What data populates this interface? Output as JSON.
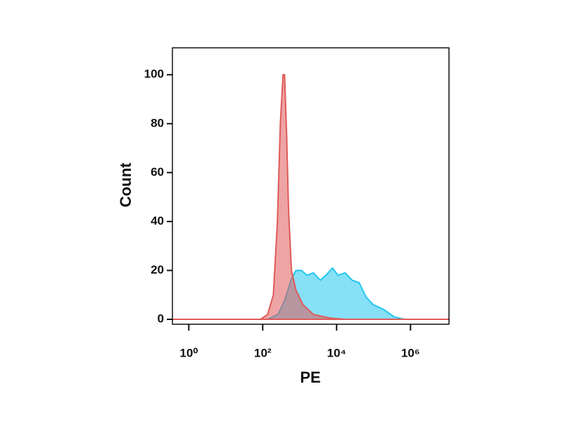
{
  "chart_data": {
    "type": "area",
    "xlabel": "PE",
    "ylabel": "Count",
    "xscale": "log",
    "xlim": [
      0.36,
      11000000
    ],
    "ylim": [
      -2,
      111
    ],
    "xticks": [
      {
        "value": 1,
        "label": "10⁰"
      },
      {
        "value": 100,
        "label": "10²"
      },
      {
        "value": 10000,
        "label": "10⁴"
      },
      {
        "value": 1000000,
        "label": "10⁶"
      }
    ],
    "yticks": [
      0,
      20,
      40,
      60,
      80,
      100
    ],
    "series": [
      {
        "color": "#22c6ee",
        "x": [
          0.36,
          136,
          260,
          400,
          580,
          790,
          1120,
          1580,
          2350,
          3630,
          5130,
          7760,
          10900,
          17000,
          26300,
          40700,
          63100,
          97700,
          190000,
          363000,
          708000,
          11000000
        ],
        "values": [
          0,
          0,
          2,
          8,
          16,
          20,
          20,
          18,
          19,
          16,
          18,
          21,
          18,
          19,
          16,
          15,
          9,
          6,
          4,
          1,
          0,
          0
        ]
      },
      {
        "color": "#e05a5a",
        "x": [
          0.36,
          87,
          136,
          194,
          250,
          300,
          355,
          390,
          445,
          500,
          600,
          790,
          1230,
          2350,
          7000,
          17000,
          11000000
        ],
        "values": [
          0,
          0,
          2,
          10,
          40,
          80,
          100,
          100,
          75,
          45,
          20,
          12,
          6,
          2,
          0.5,
          0,
          0
        ]
      }
    ]
  }
}
